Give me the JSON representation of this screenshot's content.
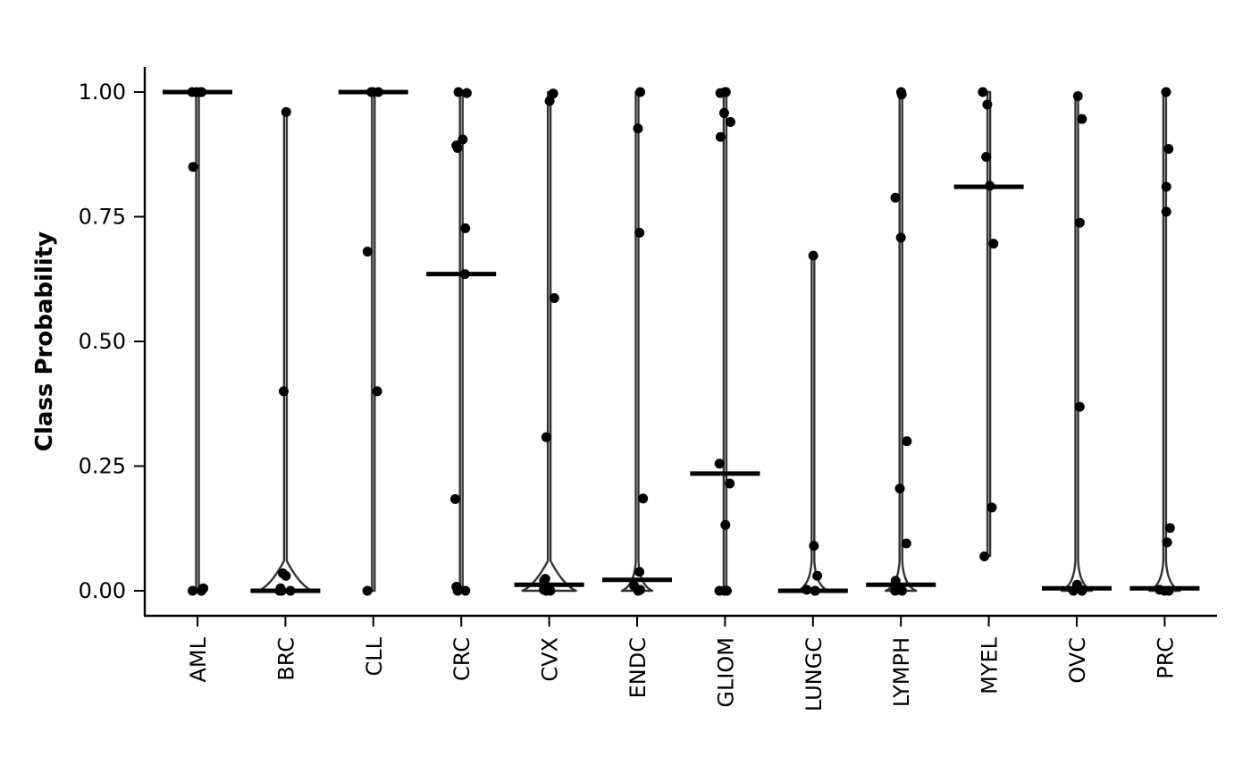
{
  "chart_data": {
    "type": "violin",
    "title": "",
    "xlabel": "",
    "ylabel": "Class Probability",
    "ylim": [
      -0.05,
      1.05
    ],
    "yticks": [
      "0.00",
      "0.25",
      "0.50",
      "0.75",
      "1.00"
    ],
    "grid": false,
    "legend": "none",
    "colors": {
      "violin": "#333333",
      "points": "#000000",
      "median": "#000000"
    },
    "groups": [
      {
        "label": "AML",
        "median": 1.0,
        "range": [
          0.0,
          1.0
        ],
        "points": [
          1.0,
          1.0,
          1.0,
          1.0,
          0.85,
          0.0,
          0.0,
          0.005
        ]
      },
      {
        "label": "BRC",
        "median": 0.0,
        "range": [
          0.0,
          0.96
        ],
        "points": [
          0.96,
          0.4,
          0.035,
          0.03,
          0.005,
          0.0,
          0.0,
          0.0
        ]
      },
      {
        "label": "CLL",
        "median": 1.0,
        "range": [
          0.0,
          1.0
        ],
        "points": [
          1.0,
          1.0,
          1.0,
          0.68,
          0.4,
          0.0
        ]
      },
      {
        "label": "CRC",
        "median": 0.635,
        "range": [
          0.0,
          1.0
        ],
        "points": [
          1.0,
          0.998,
          0.905,
          0.893,
          0.888,
          0.727,
          0.635,
          0.184,
          0.008,
          0.002,
          0.0,
          0.0
        ]
      },
      {
        "label": "CVX",
        "median": 0.012,
        "range": [
          0.0,
          1.0
        ],
        "points": [
          0.997,
          0.982,
          0.587,
          0.308,
          0.024,
          0.02,
          0.005,
          0.002,
          0.0,
          0.0
        ]
      },
      {
        "label": "ENDC",
        "median": 0.022,
        "range": [
          0.0,
          1.0
        ],
        "points": [
          1.0,
          0.927,
          0.718,
          0.185,
          0.038,
          0.01,
          0.002,
          0.0
        ]
      },
      {
        "label": "GLIOM",
        "median": 0.235,
        "range": [
          0.0,
          1.0
        ],
        "points": [
          1.0,
          1.0,
          0.998,
          0.958,
          0.94,
          0.91,
          0.255,
          0.215,
          0.132,
          0.0,
          0.0,
          0.0
        ]
      },
      {
        "label": "LUNGC",
        "median": 0.0,
        "range": [
          0.0,
          0.67
        ],
        "points": [
          0.672,
          0.09,
          0.03,
          0.002,
          0.0,
          0.0
        ]
      },
      {
        "label": "LYMPH",
        "median": 0.012,
        "range": [
          0.0,
          1.0
        ],
        "points": [
          1.0,
          0.995,
          0.788,
          0.708,
          0.3,
          0.205,
          0.095,
          0.02,
          0.002,
          0.0,
          0.0
        ]
      },
      {
        "label": "MYEL",
        "median": 0.81,
        "range": [
          0.07,
          1.0
        ],
        "points": [
          1.0,
          0.975,
          0.87,
          0.812,
          0.696,
          0.167,
          0.069
        ]
      },
      {
        "label": "OVC",
        "median": 0.005,
        "range": [
          0.0,
          0.99
        ],
        "points": [
          0.992,
          0.946,
          0.738,
          0.369,
          0.012,
          0.002,
          0.0,
          0.0
        ]
      },
      {
        "label": "PRC",
        "median": 0.005,
        "range": [
          0.0,
          1.0
        ],
        "points": [
          1.0,
          0.886,
          0.81,
          0.76,
          0.126,
          0.097,
          0.002,
          0.0,
          0.0
        ]
      }
    ]
  }
}
